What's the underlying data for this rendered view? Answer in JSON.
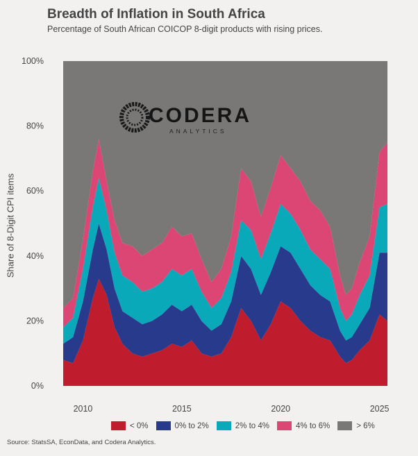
{
  "header": {
    "title": "Breadth of Inflation in South Africa",
    "subtitle": "Percentage of South African COICOP 8-digit products with rising prices."
  },
  "logo": {
    "word": "CODERA",
    "sub": "ANALYTICS"
  },
  "source": "Source: StatsSA, EconData, and Codera Analytics.",
  "chart_data": {
    "type": "area",
    "stacked": true,
    "ylabel": "Share of 8-Digit CPI items",
    "ylim": [
      0,
      100
    ],
    "xlim": [
      2009.0,
      2025.4
    ],
    "xticks": [
      2010,
      2015,
      2020,
      2025
    ],
    "yticks": [
      0,
      20,
      40,
      60,
      80,
      100
    ],
    "ytick_labels": [
      "0%",
      "20%",
      "40%",
      "60%",
      "80%",
      "100%"
    ],
    "grid": false,
    "legend_position": "bottom",
    "x": [
      2009.0,
      2009.5,
      2010.0,
      2010.5,
      2010.8,
      2011.2,
      2011.6,
      2012.0,
      2012.5,
      2013.0,
      2013.5,
      2014.0,
      2014.5,
      2015.0,
      2015.5,
      2016.0,
      2016.5,
      2017.0,
      2017.5,
      2018.0,
      2018.5,
      2019.0,
      2019.5,
      2020.0,
      2020.5,
      2021.0,
      2021.5,
      2022.0,
      2022.5,
      2023.0,
      2023.3,
      2023.6,
      2024.0,
      2024.5,
      2025.0,
      2025.4
    ],
    "series": [
      {
        "name": "< 0%",
        "color": "#bf1d2d",
        "values": [
          8,
          7,
          14,
          27,
          33,
          28,
          18,
          13,
          10,
          9,
          10,
          11,
          13,
          12,
          14,
          10,
          9,
          10,
          15,
          24,
          20,
          14,
          19,
          26,
          24,
          20,
          17,
          15,
          14,
          9,
          7,
          8,
          11,
          14,
          22,
          20
        ]
      },
      {
        "name": "0% to 2%",
        "color": "#273a8c",
        "values": [
          5,
          8,
          12,
          15,
          17,
          14,
          12,
          10,
          11,
          10,
          10,
          11,
          12,
          11,
          11,
          10,
          8,
          9,
          11,
          16,
          16,
          14,
          16,
          17,
          17,
          16,
          14,
          13,
          12,
          8,
          7,
          7,
          8,
          10,
          19,
          21
        ]
      },
      {
        "name": "2% to 4%",
        "color": "#0aa9b9",
        "values": [
          5,
          6,
          10,
          13,
          14,
          12,
          11,
          11,
          11,
          10,
          10,
          10,
          11,
          11,
          11,
          9,
          7,
          8,
          9,
          11,
          12,
          11,
          12,
          13,
          12,
          12,
          11,
          11,
          10,
          7,
          6,
          7,
          9,
          10,
          14,
          15
        ]
      },
      {
        "name": "4% to 6%",
        "color": "#dc4675",
        "values": [
          6,
          6,
          9,
          11,
          12,
          9,
          10,
          10,
          11,
          11,
          12,
          12,
          13,
          12,
          11,
          10,
          8,
          9,
          11,
          16,
          15,
          13,
          14,
          15,
          14,
          15,
          15,
          15,
          13,
          10,
          8,
          8,
          10,
          12,
          17,
          19
        ]
      },
      {
        "name": "> 6%",
        "color": "#797877",
        "values": [
          76,
          73,
          55,
          34,
          24,
          37,
          49,
          56,
          57,
          60,
          58,
          56,
          51,
          54,
          53,
          61,
          68,
          64,
          54,
          33,
          37,
          48,
          39,
          29,
          33,
          37,
          43,
          46,
          51,
          66,
          72,
          70,
          62,
          54,
          28,
          25
        ]
      }
    ]
  }
}
